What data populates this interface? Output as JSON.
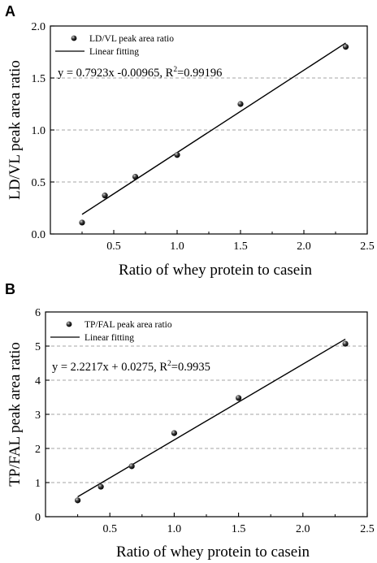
{
  "chart_data": [
    {
      "panel_label": "A",
      "type": "scatter",
      "xlabel": "Ratio of whey protein to casein",
      "ylabel": "LD/VL peak area ratio",
      "xlim": [
        0,
        2.5
      ],
      "ylim": [
        0,
        2.0
      ],
      "xticks": [
        "0.5",
        "1.0",
        "1.5",
        "2.0",
        "2.5"
      ],
      "yticks": [
        "0.0",
        "0.5",
        "1.0",
        "1.5",
        "2.0"
      ],
      "gridlines_y": [
        0.5,
        1.0,
        1.5
      ],
      "legend": {
        "points_label": "LD/VL peak area ratio",
        "line_label": "Linear fitting",
        "position": "top-left"
      },
      "equation": {
        "main": "y = 0.7923x -0.00965, R",
        "sup": "2",
        "rest": "=0.99196"
      },
      "series": [
        {
          "kind": "points",
          "x": [
            0.25,
            0.43,
            0.67,
            1.0,
            1.5,
            2.33
          ],
          "y": [
            0.11,
            0.37,
            0.55,
            0.76,
            1.25,
            1.8
          ]
        },
        {
          "kind": "fit",
          "slope": 0.7923,
          "intercept": -0.00965,
          "x_range": [
            0.25,
            2.33
          ]
        }
      ]
    },
    {
      "panel_label": "B",
      "type": "scatter",
      "xlabel": "Ratio of whey protein to casein",
      "ylabel": "TP/FAL peak area ratio",
      "xlim": [
        0,
        2.5
      ],
      "ylim": [
        0,
        6
      ],
      "xticks": [
        "0.5",
        "1.0",
        "1.5",
        "2.0",
        "2.5"
      ],
      "yticks": [
        "0",
        "1",
        "2",
        "3",
        "4",
        "5",
        "6"
      ],
      "gridlines_y": [
        1,
        2,
        3,
        4,
        5
      ],
      "legend": {
        "points_label": "TP/FAL peak area ratio",
        "line_label": "Linear fitting",
        "position": "top-left"
      },
      "equation": {
        "main": "y = 2.2217x + 0.0275, R",
        "sup": "2",
        "rest": "=0.9935"
      },
      "series": [
        {
          "kind": "points",
          "x": [
            0.25,
            0.43,
            0.67,
            1.0,
            1.5,
            2.33
          ],
          "y": [
            0.48,
            0.88,
            1.48,
            2.45,
            3.48,
            5.07
          ]
        },
        {
          "kind": "fit",
          "slope": 2.2217,
          "intercept": 0.0275,
          "x_range": [
            0.25,
            2.33
          ]
        }
      ]
    }
  ]
}
